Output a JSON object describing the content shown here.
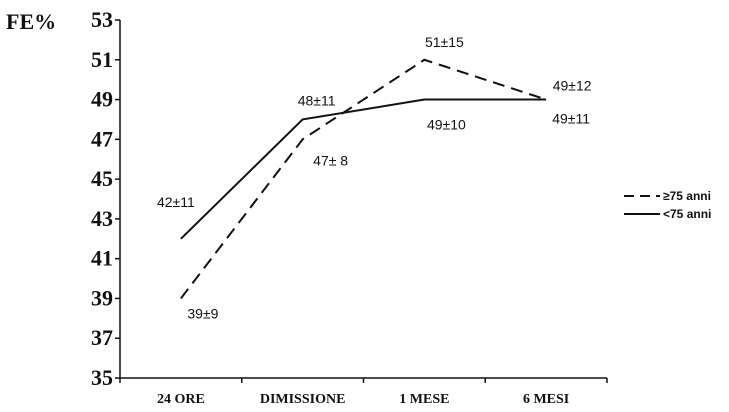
{
  "chart_data": {
    "type": "line",
    "ylabel": "FE%",
    "categories": [
      "24 ORE",
      "DIMISSIONE",
      "1 MESE",
      "6 MESI"
    ],
    "ylim": [
      35,
      53
    ],
    "yticks": [
      35,
      37,
      39,
      41,
      43,
      45,
      47,
      49,
      51,
      53
    ],
    "series": [
      {
        "name": "≥75 anni",
        "style": "dashed",
        "color": "#111111",
        "values": [
          39,
          47,
          51,
          49
        ],
        "labels": [
          "39±9",
          "47± 8",
          "51±15",
          "49±12"
        ]
      },
      {
        "name": "<75 anni",
        "style": "solid",
        "color": "#111111",
        "values": [
          42,
          48,
          49,
          49
        ],
        "labels": [
          "42±11",
          "48±11",
          "49±10",
          "49±11"
        ]
      }
    ],
    "legend_position": "right",
    "grid": false
  }
}
